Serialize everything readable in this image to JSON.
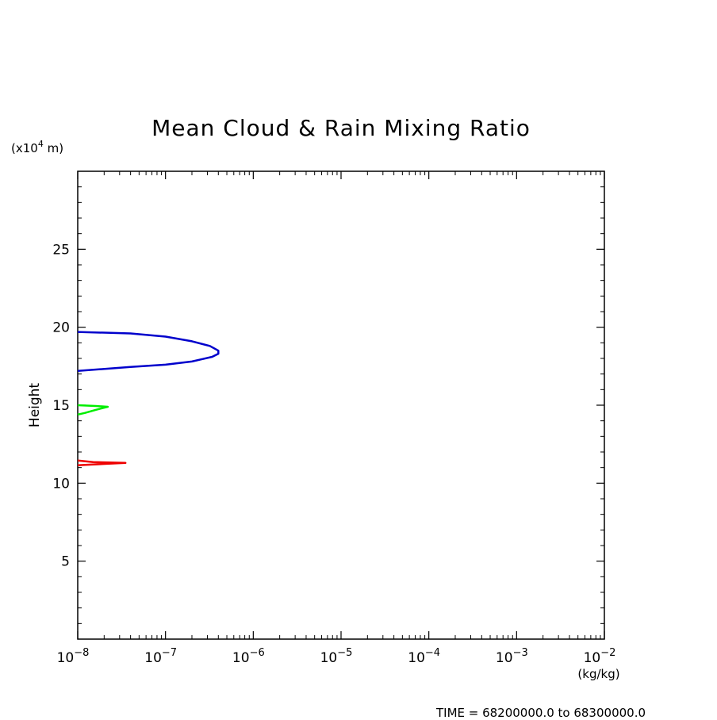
{
  "chart_data": {
    "type": "line",
    "title": "Mean Cloud & Rain Mixing Ratio",
    "ylabel": "Height",
    "y_unit": {
      "prefix": "(x10",
      "exponent": "4",
      "suffix": " m)"
    },
    "x_unit": "(kg/kg)",
    "x_scale": "log",
    "xlim": [
      1e-08,
      0.01
    ],
    "ylim": [
      0,
      30
    ],
    "x_ticks": [
      {
        "value": 1e-08,
        "base": "10",
        "exp": "−8"
      },
      {
        "value": 1e-07,
        "base": "10",
        "exp": "−7"
      },
      {
        "value": 1e-06,
        "base": "10",
        "exp": "−6"
      },
      {
        "value": 1e-05,
        "base": "10",
        "exp": "−5"
      },
      {
        "value": 0.0001,
        "base": "10",
        "exp": "−4"
      },
      {
        "value": 0.001,
        "base": "10",
        "exp": "−3"
      },
      {
        "value": 0.01,
        "base": "10",
        "exp": "−2"
      }
    ],
    "y_ticks": [
      5,
      10,
      15,
      20,
      25
    ],
    "y_minor_step": 1,
    "grid": false,
    "footer": "TIME = 68200000.0 to 68300000.0",
    "series": [
      {
        "color": "#0000cc",
        "points": [
          [
            1e-08,
            19.7
          ],
          [
            4e-08,
            19.6
          ],
          [
            1e-07,
            19.4
          ],
          [
            2e-07,
            19.1
          ],
          [
            3.2e-07,
            18.8
          ],
          [
            4e-07,
            18.5
          ],
          [
            4e-07,
            18.3
          ],
          [
            3.4e-07,
            18.1
          ],
          [
            2e-07,
            17.8
          ],
          [
            1e-07,
            17.6
          ],
          [
            4e-08,
            17.45
          ],
          [
            1e-08,
            17.2
          ]
        ]
      },
      {
        "color": "#00ee00",
        "points": [
          [
            1e-08,
            15.0
          ],
          [
            1.6e-08,
            14.95
          ],
          [
            2.2e-08,
            14.9
          ],
          [
            1.6e-08,
            14.7
          ],
          [
            1.2e-08,
            14.5
          ],
          [
            1e-08,
            14.4
          ]
        ]
      },
      {
        "color": "#ee0000",
        "points": [
          [
            1e-08,
            11.45
          ],
          [
            1.5e-08,
            11.35
          ],
          [
            3.5e-08,
            11.3
          ],
          [
            1.5e-08,
            11.2
          ],
          [
            1e-08,
            11.15
          ]
        ]
      }
    ]
  }
}
